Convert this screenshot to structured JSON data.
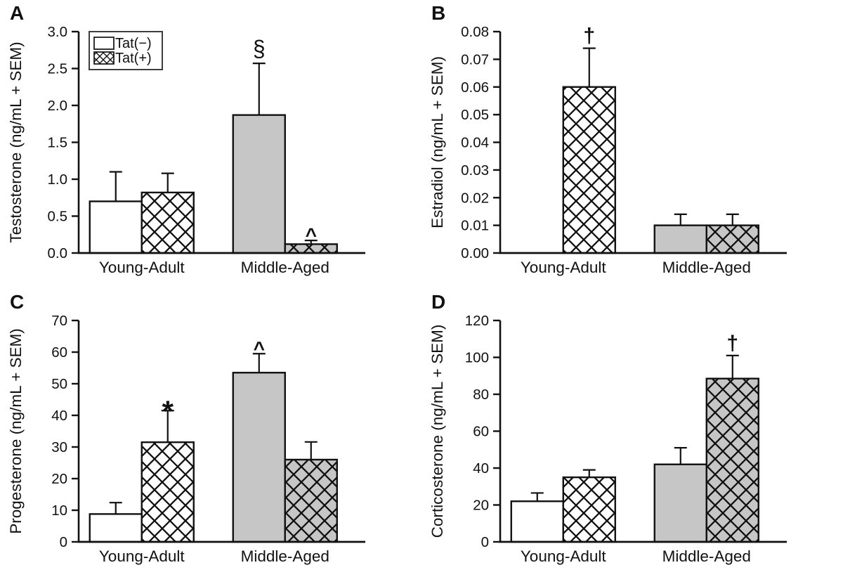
{
  "figure": {
    "background": "#ffffff",
    "stroke_color": "#111111",
    "gray_fill": "#c6c6c6",
    "white_fill": "#ffffff",
    "legend": {
      "items": [
        {
          "label": "Tat(−)",
          "hatch": false,
          "swatch": "open-square"
        },
        {
          "label": "Tat(+)",
          "hatch": true,
          "swatch": "crosshatch-square"
        }
      ]
    }
  },
  "chart_data": [
    {
      "type": "bar",
      "panel": "A",
      "ylabel": "Testosterone (ng/mL + SEM)",
      "ylim": [
        0,
        3.0
      ],
      "ytick_labels": [
        "0.0",
        "0.5",
        "1.0",
        "1.5",
        "2.0",
        "2.5",
        "3.0"
      ],
      "categories": [
        "Young-Adult",
        "Middle-Aged"
      ],
      "category_fills": [
        "#ffffff",
        "#c6c6c6"
      ],
      "grid": false,
      "legend_position": "upper-left",
      "show_legend": true,
      "series": [
        {
          "name": "Tat(−)",
          "hatch": false,
          "values": [
            0.7,
            1.87
          ],
          "sem": [
            0.4,
            0.7
          ],
          "annotations": [
            "",
            "§"
          ]
        },
        {
          "name": "Tat(+)",
          "hatch": true,
          "values": [
            0.82,
            0.12
          ],
          "sem": [
            0.26,
            0.05
          ],
          "annotations": [
            "",
            "^"
          ]
        }
      ]
    },
    {
      "type": "bar",
      "panel": "B",
      "ylabel": "Estradiol (ng/mL + SEM)",
      "ylim": [
        0,
        0.08
      ],
      "ytick_labels": [
        "0.00",
        "0.01",
        "0.02",
        "0.03",
        "0.04",
        "0.05",
        "0.06",
        "0.07",
        "0.08"
      ],
      "categories": [
        "Young-Adult",
        "Middle-Aged"
      ],
      "category_fills": [
        "#ffffff",
        "#c6c6c6"
      ],
      "grid": false,
      "show_legend": false,
      "series": [
        {
          "name": "Tat(−)",
          "hatch": false,
          "values": [
            0,
            0.01
          ],
          "sem": [
            0,
            0.004
          ],
          "annotations": [
            "",
            ""
          ]
        },
        {
          "name": "Tat(+)",
          "hatch": true,
          "values": [
            0.06,
            0.01
          ],
          "sem": [
            0.014,
            0.004
          ],
          "annotations": [
            "†",
            ""
          ]
        }
      ]
    },
    {
      "type": "bar",
      "panel": "C",
      "ylabel": "Progesterone (ng/mL + SEM)",
      "ylim": [
        0,
        70
      ],
      "ytick_labels": [
        "0",
        "10",
        "20",
        "30",
        "40",
        "50",
        "60",
        "70"
      ],
      "categories": [
        "Young-Adult",
        "Middle-Aged"
      ],
      "category_fills": [
        "#ffffff",
        "#c6c6c6"
      ],
      "grid": false,
      "show_legend": false,
      "series": [
        {
          "name": "Tat(−)",
          "hatch": false,
          "values": [
            8.8,
            53.5
          ],
          "sem": [
            3.6,
            6.0
          ],
          "annotations": [
            "",
            "^"
          ]
        },
        {
          "name": "Tat(+)",
          "hatch": true,
          "values": [
            31.5,
            26.0
          ],
          "sem": [
            10.0,
            5.6
          ],
          "annotations": [
            "*",
            ""
          ]
        }
      ]
    },
    {
      "type": "bar",
      "panel": "D",
      "ylabel": "Corticosterone (ng/mL + SEM)",
      "ylim": [
        0,
        120
      ],
      "ytick_labels": [
        "0",
        "20",
        "40",
        "60",
        "80",
        "100",
        "120"
      ],
      "categories": [
        "Young-Adult",
        "Middle-Aged"
      ],
      "category_fills": [
        "#ffffff",
        "#c6c6c6"
      ],
      "grid": false,
      "show_legend": false,
      "series": [
        {
          "name": "Tat(−)",
          "hatch": false,
          "values": [
            22,
            42
          ],
          "sem": [
            4.5,
            9.0
          ],
          "annotations": [
            "",
            ""
          ]
        },
        {
          "name": "Tat(+)",
          "hatch": true,
          "values": [
            35,
            88.5
          ],
          "sem": [
            4.0,
            12.5
          ],
          "annotations": [
            "",
            "†"
          ]
        }
      ]
    }
  ]
}
